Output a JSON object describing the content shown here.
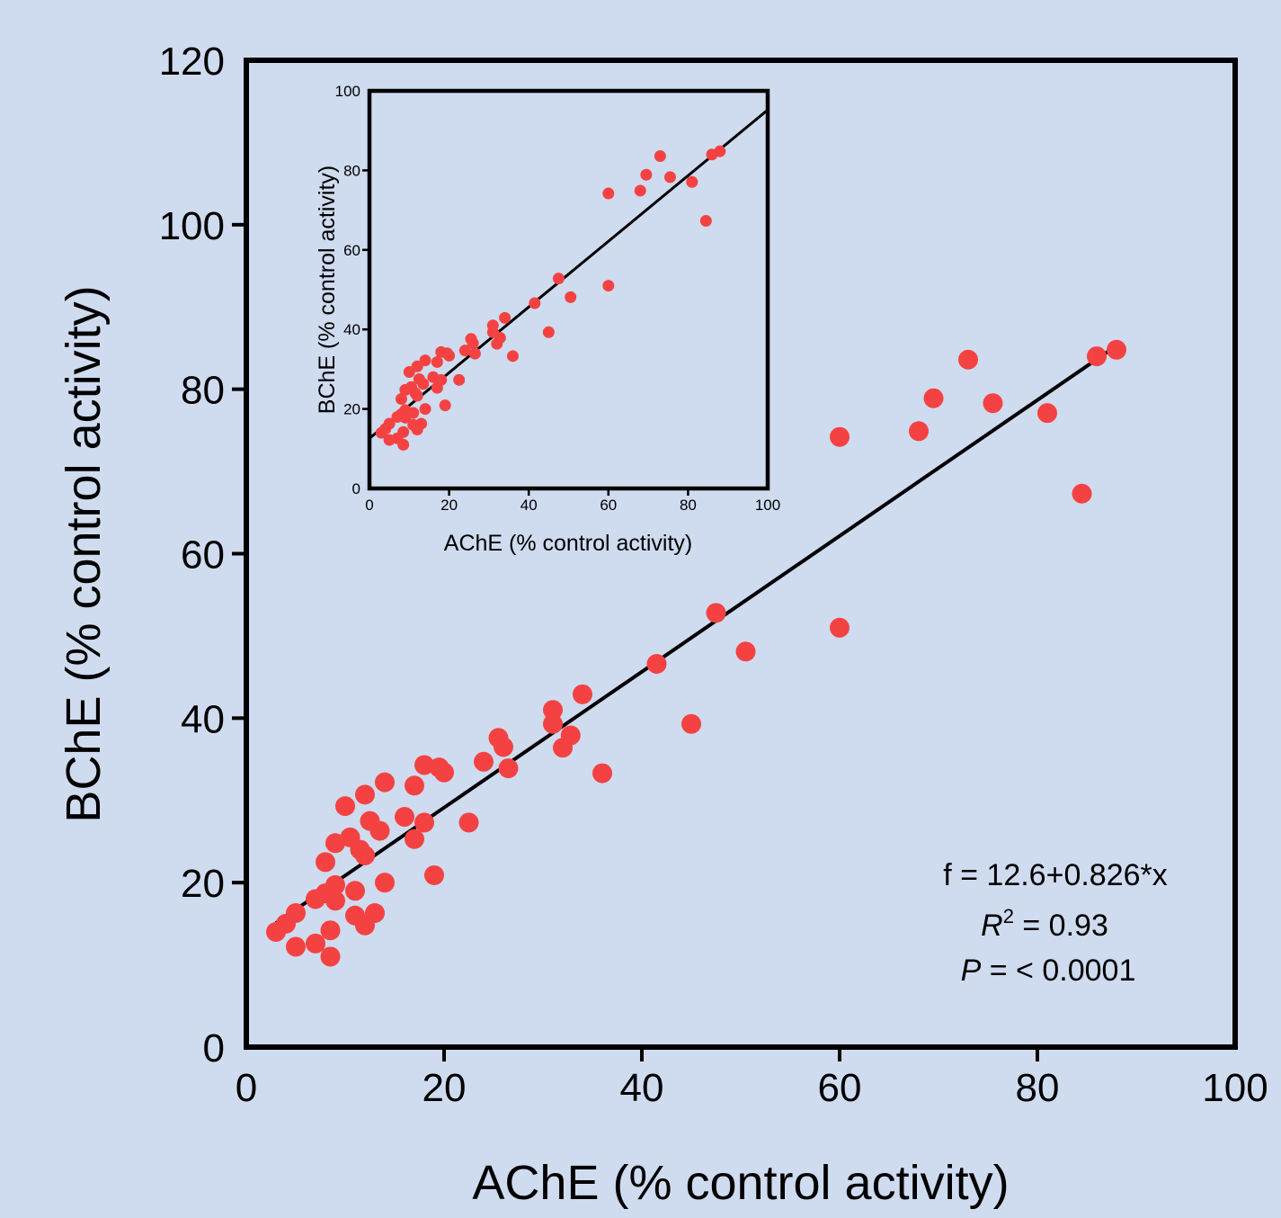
{
  "background_color": "#cfdbef",
  "point_color": "#f44242",
  "chart_data": [
    {
      "type": "scatter",
      "panel": "main",
      "xlabel": "AChE (% control activity)",
      "ylabel": "BChE (% control activity)",
      "xlim": [
        0,
        100
      ],
      "ylim": [
        0,
        120
      ],
      "xticks": [
        "0",
        "20",
        "40",
        "60",
        "80",
        "100"
      ],
      "yticks": [
        "0",
        "20",
        "40",
        "60",
        "80",
        "100",
        "120"
      ],
      "grid": false,
      "points": [
        [
          3,
          14
        ],
        [
          4,
          15
        ],
        [
          5,
          16.3
        ],
        [
          5,
          12.2
        ],
        [
          7,
          12.6
        ],
        [
          7,
          18
        ],
        [
          8,
          18.7
        ],
        [
          8,
          22.5
        ],
        [
          8.5,
          14.2
        ],
        [
          8.5,
          11
        ],
        [
          9,
          19.7
        ],
        [
          9,
          17.8
        ],
        [
          9,
          24.8
        ],
        [
          10,
          29.3
        ],
        [
          10.5,
          25.5
        ],
        [
          11,
          16
        ],
        [
          11,
          19
        ],
        [
          11.5,
          24
        ],
        [
          12,
          30.7
        ],
        [
          12,
          14.8
        ],
        [
          12,
          23.3
        ],
        [
          12.5,
          27.5
        ],
        [
          13,
          16.3
        ],
        [
          13.5,
          26.3
        ],
        [
          14,
          32.2
        ],
        [
          14,
          20
        ],
        [
          16,
          28
        ],
        [
          17,
          25.3
        ],
        [
          17,
          31.8
        ],
        [
          18,
          34.3
        ],
        [
          18,
          27.3
        ],
        [
          19,
          20.9
        ],
        [
          19.5,
          34
        ],
        [
          20,
          33.4
        ],
        [
          22.5,
          27.3
        ],
        [
          24,
          34.7
        ],
        [
          25.5,
          37.6
        ],
        [
          26,
          36.5
        ],
        [
          26.5,
          33.9
        ],
        [
          31,
          41
        ],
        [
          31,
          39.3
        ],
        [
          32,
          36.4
        ],
        [
          32.8,
          37.9
        ],
        [
          34,
          42.9
        ],
        [
          36,
          33.3
        ],
        [
          41.5,
          46.6
        ],
        [
          45,
          39.3
        ],
        [
          47.5,
          52.8
        ],
        [
          50.5,
          48.1
        ],
        [
          60,
          51
        ],
        [
          60,
          74.2
        ],
        [
          68,
          74.9
        ],
        [
          69.5,
          78.9
        ],
        [
          73,
          83.6
        ],
        [
          75.5,
          78.3
        ],
        [
          81,
          77.1
        ],
        [
          84.5,
          67.3
        ],
        [
          86,
          84
        ],
        [
          88,
          84.8
        ]
      ],
      "regression": {
        "intercept": 12.6,
        "slope": 0.826,
        "x_range": [
          3,
          88
        ]
      },
      "annotations": {
        "equation": "f = 12.6+0.826*x",
        "r2_symbol": "R",
        "r2_superscript": "2",
        "r2_value": " = 0.93",
        "p_symbol": "P",
        "p_value": " = < 0.0001"
      }
    },
    {
      "type": "scatter",
      "panel": "inset",
      "xlabel": "AChE (% control activity)",
      "ylabel": "BChE (% control activity)",
      "xlim": [
        0,
        100
      ],
      "ylim": [
        0,
        100
      ],
      "xticks": [
        "0",
        "20",
        "40",
        "60",
        "80",
        "100"
      ],
      "yticks": [
        "0",
        "20",
        "40",
        "60",
        "80",
        "100"
      ],
      "grid": false,
      "regression": {
        "intercept": 12.6,
        "slope": 0.826,
        "x_range": [
          0,
          100
        ]
      }
    }
  ]
}
